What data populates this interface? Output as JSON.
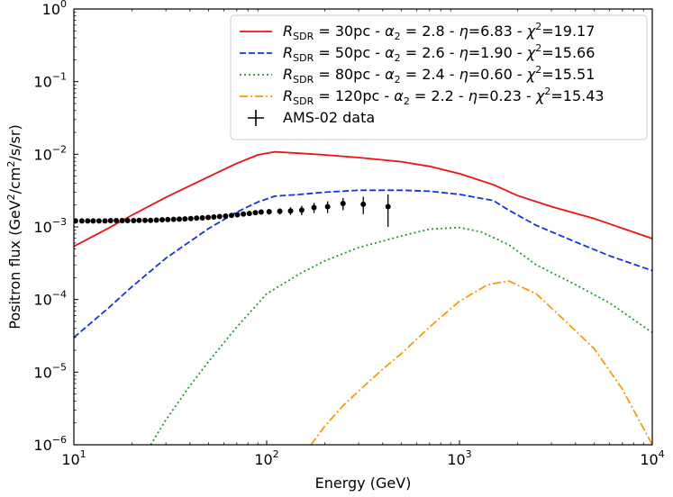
{
  "chart_data": {
    "type": "line",
    "xscale": "log",
    "yscale": "log",
    "xlim": [
      10,
      10000
    ],
    "ylim": [
      1e-06,
      1
    ],
    "xlabel": "Energy (GeV)",
    "ylabel": "Positron flux (GeV²/cm²/s/sr)",
    "x_ticks": [
      {
        "base": "10",
        "exp": "1",
        "value": 10
      },
      {
        "base": "10",
        "exp": "2",
        "value": 100
      },
      {
        "base": "10",
        "exp": "3",
        "value": 1000
      },
      {
        "base": "10",
        "exp": "4",
        "value": 10000
      }
    ],
    "y_ticks": [
      {
        "base": "10",
        "exp": "0",
        "value": 1
      },
      {
        "base": "10",
        "exp": "−1",
        "value": 0.1
      },
      {
        "base": "10",
        "exp": "−2",
        "value": 0.01
      },
      {
        "base": "10",
        "exp": "−3",
        "value": 0.001
      },
      {
        "base": "10",
        "exp": "−4",
        "value": 0.0001
      },
      {
        "base": "10",
        "exp": "−5",
        "value": 1e-05
      },
      {
        "base": "10",
        "exp": "−6",
        "value": 1e-06
      }
    ],
    "legend_position": "top-right",
    "series": [
      {
        "name": "R_SDR = 30pc - α_2 = 2.8 - η=6.83 - χ²=19.17",
        "label": {
          "R": "R",
          "Rsub": "SDR",
          "r": "30pc",
          "alpha": "α",
          "alphaSub": "2",
          "alphaVal": "2.8",
          "eta": "η",
          "etaVal": "6.83",
          "chi": "χ",
          "chiSup": "2",
          "chiVal": "19.17"
        },
        "color": "#ee1111",
        "style": "solid",
        "x": [
          10,
          15,
          20,
          30,
          50,
          70,
          90,
          110,
          150,
          200,
          300,
          500,
          700,
          1000,
          1500,
          2000,
          3000,
          5000,
          10000
        ],
        "y": [
          0.00054,
          0.00095,
          0.00145,
          0.00255,
          0.0049,
          0.0075,
          0.0098,
          0.0108,
          0.0103,
          0.0098,
          0.009,
          0.0079,
          0.0068,
          0.0054,
          0.0038,
          0.0027,
          0.0019,
          0.0013,
          0.00069
        ]
      },
      {
        "name": "R_SDR = 50pc - α_2 = 2.6 - η=1.90 - χ²=15.66",
        "label": {
          "R": "R",
          "Rsub": "SDR",
          "r": "50pc",
          "alpha": "α",
          "alphaSub": "2",
          "alphaVal": "2.6",
          "eta": "η",
          "etaVal": "1.90",
          "chi": "χ",
          "chiSup": "2",
          "chiVal": "15.66"
        },
        "color": "#1133ee",
        "style": "dashed",
        "x": [
          10,
          15,
          20,
          30,
          50,
          70,
          90,
          110,
          150,
          200,
          300,
          500,
          700,
          1000,
          1500,
          1800,
          2500,
          4000,
          6000,
          10000
        ],
        "y": [
          3e-05,
          7.5e-05,
          0.00015,
          0.00037,
          0.00095,
          0.0016,
          0.0022,
          0.00265,
          0.0028,
          0.003,
          0.0032,
          0.0032,
          0.0031,
          0.0028,
          0.0023,
          0.0017,
          0.00105,
          0.00062,
          0.0004,
          0.00025
        ]
      },
      {
        "name": "R_SDR = 80pc - α_2 = 2.4 - η=0.60 - χ²=15.51",
        "label": {
          "R": "R",
          "Rsub": "SDR",
          "r": "80pc",
          "alpha": "α",
          "alphaSub": "2",
          "alphaVal": "2.4",
          "eta": "η",
          "etaVal": "0.60",
          "chi": "χ",
          "chiSup": "2",
          "chiVal": "15.51"
        },
        "color": "#22992a",
        "style": "dotted",
        "x": [
          25,
          30,
          40,
          50,
          70,
          100,
          150,
          200,
          300,
          500,
          700,
          1000,
          1300,
          1800,
          2500,
          4000,
          6000,
          10000
        ],
        "y": [
          1e-06,
          2.2e-06,
          6.5e-06,
          1.4e-05,
          4.2e-05,
          0.00012,
          0.00023,
          0.00034,
          0.00052,
          0.00075,
          0.00093,
          0.00098,
          0.00085,
          0.00057,
          0.0003,
          0.00016,
          9e-05,
          3.5e-05
        ]
      },
      {
        "name": "R_SDR = 120pc - α_2 = 2.2 - η=0.23 - χ²=15.43",
        "label": {
          "R": "R",
          "Rsub": "SDR",
          "r": "120pc",
          "alpha": "α",
          "alphaSub": "2",
          "alphaVal": "2.2",
          "eta": "η",
          "etaVal": "0.23",
          "chi": "χ",
          "chiSup": "2",
          "chiVal": "15.43"
        },
        "color": "#ff9900",
        "style": "dashdot",
        "x": [
          170,
          200,
          250,
          300,
          400,
          500,
          700,
          1000,
          1400,
          1800,
          2500,
          3500,
          5000,
          7000,
          10000
        ],
        "y": [
          1e-06,
          1.8e-06,
          3.5e-06,
          5.5e-06,
          1.1e-05,
          1.8e-05,
          4.2e-05,
          9.5e-05,
          0.00016,
          0.00018,
          0.00012,
          5.2e-05,
          2.1e-05,
          5.8e-06,
          1e-06
        ]
      }
    ],
    "data_series": {
      "name": "AMS-02 data",
      "color": "#000000",
      "x": [
        10.2,
        11.0,
        11.8,
        12.6,
        13.5,
        14.5,
        15.5,
        16.6,
        17.8,
        19.0,
        20.4,
        21.8,
        23.4,
        25.0,
        26.8,
        28.7,
        30.7,
        32.9,
        35.2,
        37.7,
        40.4,
        43.3,
        46.4,
        49.7,
        53.2,
        57.0,
        61.2,
        65.7,
        70.5,
        75.7,
        81.3,
        87.4,
        93.6,
        103.0,
        117.0,
        133.0,
        152.0,
        176.0,
        207.0,
        249.0,
        317.0,
        426.0
      ],
      "y": [
        0.00121,
        0.00121,
        0.00121,
        0.00121,
        0.00121,
        0.00121,
        0.00122,
        0.00122,
        0.00122,
        0.00122,
        0.00122,
        0.00123,
        0.00123,
        0.00123,
        0.00124,
        0.00125,
        0.00126,
        0.00127,
        0.00128,
        0.00129,
        0.0013,
        0.00132,
        0.00133,
        0.00135,
        0.00137,
        0.00139,
        0.00141,
        0.00144,
        0.00147,
        0.0015,
        0.00153,
        0.00157,
        0.0016,
        0.00162,
        0.00164,
        0.00166,
        0.0017,
        0.00185,
        0.0019,
        0.0021,
        0.00205,
        0.0019
      ],
      "err": [
        3e-05,
        3e-05,
        3e-05,
        3e-05,
        3e-05,
        3e-05,
        3e-05,
        3e-05,
        3e-05,
        3e-05,
        3e-05,
        3e-05,
        3e-05,
        3e-05,
        3e-05,
        3e-05,
        3e-05,
        3e-05,
        3e-05,
        3e-05,
        4e-05,
        4e-05,
        4e-05,
        4e-05,
        5e-05,
        5e-05,
        6e-05,
        7e-05,
        8e-05,
        9e-05,
        0.0001,
        0.00011,
        0.00013,
        0.00014,
        0.00016,
        0.0002,
        0.00025,
        0.0003,
        0.00035,
        0.0004,
        0.00055,
        0.0009
      ]
    }
  }
}
